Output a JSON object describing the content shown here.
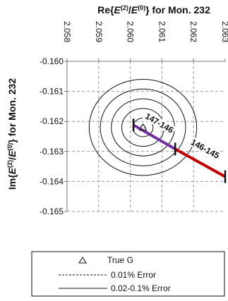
{
  "chart_data": {
    "type": "scatter",
    "title": "Re{E(2)/E(0)} for Mon. 232",
    "xlabel": "Re{E(2)/E(0)} for Mon. 232",
    "ylabel": "Im{E(2)/E(0)} for Mon. 232",
    "x_axis_position": "top",
    "xlim": [
      2.058,
      2.063
    ],
    "ylim": [
      -0.165,
      -0.16
    ],
    "x_ticks": [
      2.058,
      2.059,
      2.06,
      2.061,
      2.062,
      2.063
    ],
    "x_tick_labels": [
      "2.058",
      "2.059",
      "2.060",
      "2.061",
      "2.062",
      "2.063"
    ],
    "y_ticks": [
      -0.16,
      -0.161,
      -0.162,
      -0.163,
      -0.164,
      -0.165
    ],
    "y_tick_labels": [
      "-0.160",
      "-0.161",
      "-0.162",
      "-0.163",
      "-0.164",
      "-0.165"
    ],
    "grid": true,
    "true_g": {
      "x": 2.0604,
      "y": -0.1622,
      "label": "True G"
    },
    "error_contours": {
      "center": {
        "x": 2.0604,
        "y": -0.1622
      },
      "dashed_semi_axes": [
        [
          8e-05,
          7e-05
        ]
      ],
      "solid_semi_axes": [
        [
          0.00032,
          0.00031
        ],
        [
          0.00067,
          0.00063
        ],
        [
          0.001,
          0.00095
        ],
        [
          0.00135,
          0.00128
        ],
        [
          0.0017,
          0.0016
        ]
      ]
    },
    "segments": [
      {
        "label": "147-146",
        "color": "#7030a0",
        "from": {
          "x": 2.0601,
          "y": -0.16212
        },
        "to": {
          "x": 2.06142,
          "y": -0.16292
        }
      },
      {
        "label": "146-145",
        "color": "#c00000",
        "from": {
          "x": 2.06142,
          "y": -0.16292
        },
        "to": {
          "x": 2.063,
          "y": -0.16384
        }
      }
    ],
    "legend": {
      "position": "bottom",
      "entries": [
        {
          "symbol": "triangle",
          "label": "True G"
        },
        {
          "symbol": "dashed-line",
          "label": "0.01% Error"
        },
        {
          "symbol": "solid-line",
          "label": "0.02-0.1% Error"
        }
      ]
    }
  }
}
